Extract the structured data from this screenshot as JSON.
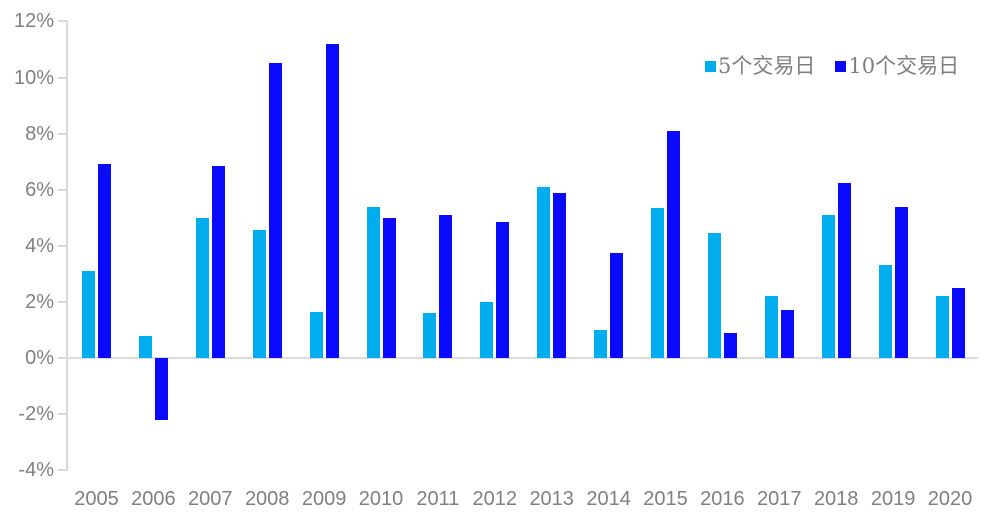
{
  "chart_data": {
    "type": "bar",
    "title": "",
    "xlabel": "",
    "ylabel": "",
    "unit": "%",
    "categories": [
      "2005",
      "2006",
      "2007",
      "2008",
      "2009",
      "2010",
      "2011",
      "2012",
      "2013",
      "2014",
      "2015",
      "2016",
      "2017",
      "2018",
      "2019",
      "2020"
    ],
    "series": [
      {
        "name": "5个交易日",
        "color": "#00AEEF",
        "values": [
          3.1,
          0.8,
          5.0,
          4.55,
          1.65,
          5.4,
          1.6,
          2.0,
          6.1,
          1.0,
          5.35,
          4.45,
          2.2,
          5.1,
          3.3,
          2.2
        ]
      },
      {
        "name": "10个交易日",
        "color": "#0A0AFF",
        "values": [
          6.9,
          -2.2,
          6.85,
          10.5,
          11.2,
          5.0,
          5.1,
          4.85,
          5.9,
          3.75,
          8.1,
          0.9,
          1.7,
          6.25,
          5.4,
          2.5
        ]
      }
    ],
    "ylim": [
      -4,
      12
    ],
    "ytick_step": 2,
    "ytick_labels": [
      "12%",
      "10%",
      "8%",
      "6%",
      "4%",
      "2%",
      "0%",
      "-2%",
      "-4%"
    ],
    "ytick_values": [
      12,
      10,
      8,
      6,
      4,
      2,
      0,
      -2,
      -4
    ],
    "grid": false,
    "legend_position": "top-right",
    "axis_color": "#D9D9D9",
    "tick_label_color": "#808080"
  }
}
